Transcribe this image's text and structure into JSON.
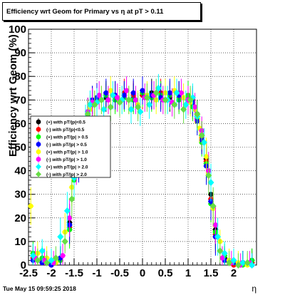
{
  "title": "Efficiency wrt Geom for Primary vs   η at pT > 0.11",
  "datestamp": "Tue May 15 09:59:25 2018",
  "chart_data": {
    "type": "scatter",
    "title": "Efficiency wrt Geom for Primary vs   η at pT > 0.11",
    "xlabel": "η",
    "ylabel": "Efficiency wrt Geom (%)",
    "xlim": [
      -2.5,
      2.5
    ],
    "ylim": [
      0,
      100
    ],
    "x_ticks": [
      "-2.5",
      "-2",
      "-1.5",
      "-1",
      "-0.5",
      "0",
      "0.5",
      "1",
      "1.5",
      "2"
    ],
    "y_ticks": [
      "0",
      "10",
      "20",
      "30",
      "40",
      "50",
      "60",
      "70",
      "80",
      "90",
      "100"
    ],
    "grid": true,
    "legend_position": "left-middle",
    "series": [
      {
        "name": "(+) with pT/|p|<0.5",
        "color": "#000000",
        "x": [
          -2.4,
          -2.2,
          -2.0,
          -1.8,
          -1.6,
          -1.5,
          -1.4,
          -1.3,
          -1.2,
          -1.1,
          -1.0,
          -0.8,
          -0.6,
          -0.4,
          -0.2,
          0.0,
          0.2,
          0.4,
          0.6,
          0.8,
          1.0,
          1.1,
          1.2,
          1.3,
          1.4,
          1.5,
          1.6,
          1.8,
          2.0,
          2.2,
          2.4
        ],
        "y": [
          4,
          2,
          1,
          3,
          18,
          40,
          45,
          55,
          65,
          70,
          70,
          71,
          72,
          72,
          71,
          72,
          73,
          72,
          71,
          72,
          70,
          70,
          64,
          55,
          45,
          30,
          15,
          3,
          1,
          1,
          2
        ]
      },
      {
        "name": "(-) with pT/|p|<0.5",
        "color": "#ff0000",
        "x": [
          -2.4,
          -2.2,
          -2.0,
          -1.8,
          -1.6,
          -1.5,
          -1.4,
          -1.3,
          -1.2,
          -1.1,
          -1.0,
          -0.8,
          -0.6,
          -0.4,
          -0.2,
          0.0,
          0.2,
          0.4,
          0.6,
          0.8,
          1.0,
          1.1,
          1.2,
          1.3,
          1.4,
          1.5,
          1.6,
          1.8,
          2.0,
          2.2,
          2.4
        ],
        "y": [
          3,
          2,
          0,
          2,
          16,
          38,
          44,
          54,
          64,
          69,
          71,
          72,
          71,
          73,
          72,
          72,
          72,
          73,
          72,
          71,
          71,
          68,
          63,
          54,
          44,
          28,
          13,
          2,
          0,
          1,
          1
        ]
      },
      {
        "name": "(+) with pT/|p| > 0.5",
        "color": "#00ff00",
        "x": [
          -2.4,
          -2.2,
          -2.0,
          -1.8,
          -1.6,
          -1.5,
          -1.4,
          -1.3,
          -1.2,
          -1.1,
          -1.0,
          -0.8,
          -0.6,
          -0.4,
          -0.2,
          0.0,
          0.2,
          0.4,
          0.6,
          0.8,
          1.0,
          1.1,
          1.2,
          1.3,
          1.4,
          1.5,
          1.6,
          1.8,
          2.0,
          2.2,
          2.4
        ],
        "y": [
          5,
          3,
          1,
          2,
          15,
          36,
          46,
          52,
          62,
          68,
          69,
          72,
          70,
          71,
          70,
          73,
          71,
          72,
          72,
          70,
          72,
          67,
          62,
          52,
          43,
          26,
          14,
          4,
          1,
          0,
          2
        ]
      },
      {
        "name": "(-) with pT/|p| > 0.5",
        "color": "#0000ff",
        "x": [
          -2.4,
          -2.2,
          -2.0,
          -1.8,
          -1.6,
          -1.5,
          -1.4,
          -1.3,
          -1.2,
          -1.1,
          -1.0,
          -0.8,
          -0.6,
          -0.4,
          -0.2,
          0.0,
          0.2,
          0.4,
          0.6,
          0.8,
          1.0,
          1.1,
          1.2,
          1.3,
          1.4,
          1.5,
          1.6,
          1.8,
          2.0,
          2.2,
          2.4
        ],
        "y": [
          2,
          1,
          0,
          3,
          17,
          39,
          43,
          53,
          63,
          70,
          71,
          73,
          72,
          72,
          73,
          74,
          72,
          71,
          73,
          72,
          70,
          69,
          61,
          53,
          42,
          27,
          12,
          2,
          1,
          1,
          0
        ]
      },
      {
        "name": "(+) with pT/|p| > 1.0",
        "color": "#ffff00",
        "x": [
          -2.45,
          -2.3,
          -2.1,
          -1.9,
          -1.7,
          -1.55,
          -1.4,
          -1.25,
          -1.15,
          -1.05,
          -0.9,
          -0.7,
          -0.5,
          -0.3,
          -0.1,
          0.1,
          0.3,
          0.5,
          0.7,
          0.9,
          1.05,
          1.15,
          1.25,
          1.4,
          1.55,
          1.7,
          1.9,
          2.1,
          2.3
        ],
        "y": [
          25,
          5,
          3,
          1,
          14,
          33,
          47,
          58,
          66,
          68,
          70,
          74,
          69,
          70,
          68,
          72,
          70,
          73,
          74,
          71,
          69,
          66,
          58,
          46,
          24,
          10,
          2,
          1,
          0
        ]
      },
      {
        "name": "(-) with pT/|p| > 1.0",
        "color": "#ff00ff",
        "x": [
          -2.35,
          -2.15,
          -1.95,
          -1.75,
          -1.6,
          -1.45,
          -1.3,
          -1.2,
          -1.1,
          -0.95,
          -0.75,
          -0.55,
          -0.35,
          -0.15,
          0.05,
          0.25,
          0.45,
          0.65,
          0.85,
          1.0,
          1.15,
          1.3,
          1.45,
          1.6,
          1.75,
          1.95,
          2.15,
          2.35
        ],
        "y": [
          3,
          2,
          1,
          4,
          20,
          42,
          56,
          65,
          69,
          72,
          70,
          71,
          74,
          70,
          71,
          72,
          70,
          69,
          73,
          70,
          67,
          57,
          40,
          17,
          3,
          1,
          0,
          1
        ]
      },
      {
        "name": "(+) with pT/|p| > 2.0",
        "color": "#00ffff",
        "x": [
          -2.4,
          -2.2,
          -2.0,
          -1.8,
          -1.65,
          -1.5,
          -1.35,
          -1.25,
          -1.15,
          -1.0,
          -0.85,
          -0.65,
          -0.45,
          -0.25,
          -0.05,
          0.15,
          0.35,
          0.55,
          0.75,
          0.95,
          1.1,
          1.2,
          1.35,
          1.5,
          1.65,
          1.8,
          2.0,
          2.2,
          2.4
        ],
        "y": [
          4,
          6,
          2,
          12,
          23,
          37,
          50,
          62,
          68,
          69,
          66,
          72,
          70,
          66,
          65,
          68,
          75,
          70,
          73,
          68,
          71,
          63,
          52,
          35,
          12,
          5,
          2,
          1,
          0
        ]
      },
      {
        "name": "(-) with pT/|p| > 2.0",
        "color": "#66dd44",
        "x": [
          -2.3,
          -2.1,
          -1.9,
          -1.7,
          -1.55,
          -1.45,
          -1.3,
          -1.2,
          -1.05,
          -0.9,
          -0.7,
          -0.5,
          -0.3,
          -0.1,
          0.1,
          0.3,
          0.5,
          0.7,
          0.9,
          1.05,
          1.2,
          1.3,
          1.45,
          1.55,
          1.7,
          1.9,
          2.1,
          2.3
        ],
        "y": [
          2,
          1,
          3,
          10,
          28,
          45,
          57,
          64,
          68,
          70,
          67,
          69,
          70,
          67,
          71,
          73,
          70,
          68,
          66,
          70,
          64,
          55,
          38,
          25,
          6,
          1,
          0,
          1
        ]
      }
    ]
  }
}
